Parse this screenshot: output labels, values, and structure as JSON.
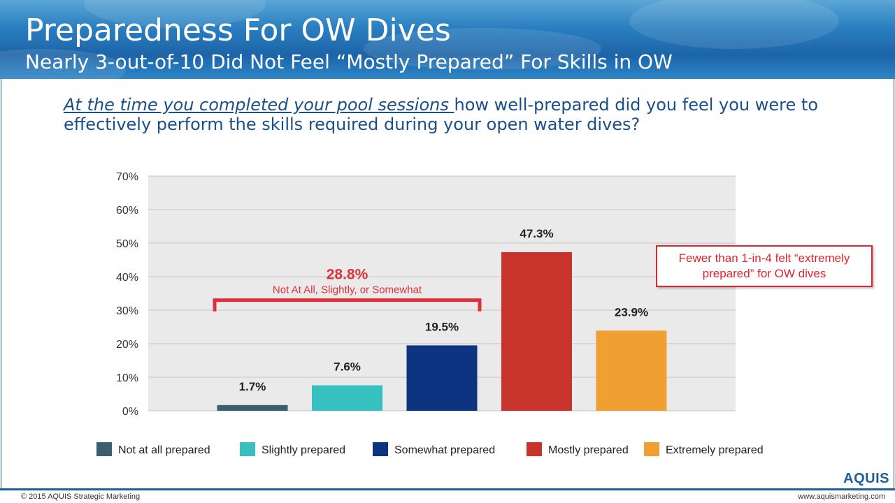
{
  "header": {
    "title": "Preparedness For OW Dives",
    "subtitle": "Nearly 3-out-of-10 Did Not Feel “Mostly Prepared” For Skills in OW"
  },
  "question": {
    "emphasis": "At the time you completed your pool sessions ",
    "rest": "how well-prepared did you feel you were to effectively perform the skills required during your open water dives?"
  },
  "chart_data": {
    "type": "bar",
    "categories": [
      "Not at all prepared",
      "Slightly prepared",
      "Somewhat prepared",
      "Mostly prepared",
      "Extremely prepared"
    ],
    "values": [
      1.7,
      7.6,
      19.5,
      47.3,
      23.9
    ],
    "value_labels": [
      "1.7%",
      "7.6%",
      "19.5%",
      "47.3%",
      "23.9%"
    ],
    "colors": [
      "#3b5f70",
      "#36c0c0",
      "#0d3480",
      "#c8332c",
      "#f0a030"
    ],
    "ylim": [
      0,
      70
    ],
    "yticks": [
      "0%",
      "10%",
      "20%",
      "30%",
      "40%",
      "50%",
      "60%",
      "70%"
    ],
    "grid": true,
    "legend_position": "bottom",
    "plot_background": "#eaeaea",
    "annotation": {
      "value": "28.8%",
      "text": "Not At All, Slightly, or Somewhat",
      "color": "#e0313b",
      "bracket_level": 33
    }
  },
  "callout": {
    "text": "Fewer than 1-in-4 felt “extremely prepared” for OW dives"
  },
  "footer": {
    "copyright": "© 2015 AQUIS Strategic Marketing",
    "website": "www.aquismarketing.com",
    "logo": "AQUIS"
  },
  "colors": {
    "brand_blue": "#1d5f9e",
    "question_text": "#1b4f8a",
    "alert_red": "#e0252e"
  }
}
